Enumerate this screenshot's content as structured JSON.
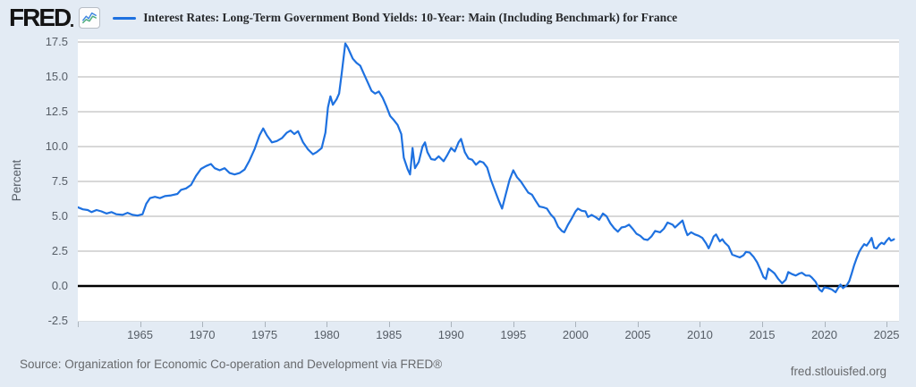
{
  "header": {
    "logo_text": "FRED",
    "legend_label": "Interest Rates: Long-Term Government Bond Yields: 10-Year: Main (Including Benchmark) for France"
  },
  "footer": {
    "source_text": "Source: Organization for Economic Co-operation and Development via FRED®",
    "site_text": "fred.stlouisfed.org"
  },
  "colors": {
    "background": "#e3ebf4",
    "plot_background": "#ffffff",
    "line": "#1e71e0",
    "gridline": "#cccccc",
    "zero_line": "#000000",
    "plot_bottom_border": "#d9dee3",
    "axis_text": "#565d66",
    "legend_text": "#26282b",
    "icon_blue": "#3d85e0",
    "icon_green": "#4cab7d"
  },
  "chart_data": {
    "type": "line",
    "title": "Interest Rates: Long-Term Government Bond Yields: 10-Year: Main (Including Benchmark) for France",
    "xlabel": "",
    "ylabel": "Percent",
    "legend_position": "top",
    "grid": "horizontal",
    "zero_line": true,
    "xlim": [
      1960,
      2026
    ],
    "ylim": [
      -2.5,
      17.5
    ],
    "yticks": [
      17.5,
      15.0,
      12.5,
      10.0,
      7.5,
      5.0,
      2.5,
      0.0,
      -2.5
    ],
    "ytick_labels": [
      "17.5",
      "15.0",
      "12.5",
      "10.0",
      "7.5",
      "5.0",
      "2.5",
      "0.0",
      "-2.5"
    ],
    "xticks": [
      1965,
      1970,
      1975,
      1980,
      1985,
      1990,
      1995,
      2000,
      2005,
      2010,
      2015,
      2020,
      2025
    ],
    "xtick_labels": [
      "1965",
      "1970",
      "1975",
      "1980",
      "1985",
      "1990",
      "1995",
      "2000",
      "2005",
      "2010",
      "2015",
      "2020",
      "2025"
    ],
    "series": [
      {
        "name": "Interest Rates: Long-Term Government Bond Yields: 10-Year: Main (Including Benchmark) for France",
        "units": "Percent",
        "points": [
          [
            1960.0,
            5.65
          ],
          [
            1960.4,
            5.5
          ],
          [
            1960.8,
            5.45
          ],
          [
            1961.1,
            5.3
          ],
          [
            1961.5,
            5.45
          ],
          [
            1961.9,
            5.35
          ],
          [
            1962.3,
            5.2
          ],
          [
            1962.7,
            5.3
          ],
          [
            1963.1,
            5.15
          ],
          [
            1963.6,
            5.1
          ],
          [
            1964.0,
            5.25
          ],
          [
            1964.4,
            5.1
          ],
          [
            1964.8,
            5.05
          ],
          [
            1965.2,
            5.15
          ],
          [
            1965.5,
            5.9
          ],
          [
            1965.8,
            6.3
          ],
          [
            1966.2,
            6.4
          ],
          [
            1966.6,
            6.3
          ],
          [
            1967.0,
            6.45
          ],
          [
            1967.5,
            6.5
          ],
          [
            1968.0,
            6.6
          ],
          [
            1968.3,
            6.9
          ],
          [
            1968.7,
            7.0
          ],
          [
            1969.1,
            7.25
          ],
          [
            1969.5,
            7.9
          ],
          [
            1969.9,
            8.4
          ],
          [
            1970.3,
            8.6
          ],
          [
            1970.7,
            8.75
          ],
          [
            1971.0,
            8.45
          ],
          [
            1971.4,
            8.3
          ],
          [
            1971.8,
            8.45
          ],
          [
            1972.2,
            8.1
          ],
          [
            1972.6,
            8.0
          ],
          [
            1973.0,
            8.1
          ],
          [
            1973.4,
            8.35
          ],
          [
            1973.8,
            9.0
          ],
          [
            1974.2,
            9.8
          ],
          [
            1974.6,
            10.8
          ],
          [
            1974.9,
            11.3
          ],
          [
            1975.2,
            10.8
          ],
          [
            1975.6,
            10.3
          ],
          [
            1976.0,
            10.4
          ],
          [
            1976.4,
            10.6
          ],
          [
            1976.8,
            11.0
          ],
          [
            1977.1,
            11.15
          ],
          [
            1977.4,
            10.9
          ],
          [
            1977.7,
            11.1
          ],
          [
            1978.1,
            10.3
          ],
          [
            1978.5,
            9.8
          ],
          [
            1978.9,
            9.45
          ],
          [
            1979.2,
            9.6
          ],
          [
            1979.6,
            9.9
          ],
          [
            1979.9,
            11.0
          ],
          [
            1980.1,
            12.8
          ],
          [
            1980.3,
            13.6
          ],
          [
            1980.5,
            13.0
          ],
          [
            1980.8,
            13.4
          ],
          [
            1981.0,
            13.8
          ],
          [
            1981.2,
            15.2
          ],
          [
            1981.5,
            17.4
          ],
          [
            1981.7,
            17.1
          ],
          [
            1981.9,
            16.7
          ],
          [
            1982.1,
            16.3
          ],
          [
            1982.4,
            16.0
          ],
          [
            1982.7,
            15.8
          ],
          [
            1983.0,
            15.2
          ],
          [
            1983.3,
            14.6
          ],
          [
            1983.6,
            14.0
          ],
          [
            1983.9,
            13.8
          ],
          [
            1984.2,
            13.95
          ],
          [
            1984.5,
            13.5
          ],
          [
            1984.8,
            12.9
          ],
          [
            1985.1,
            12.2
          ],
          [
            1985.4,
            11.9
          ],
          [
            1985.7,
            11.55
          ],
          [
            1986.0,
            10.9
          ],
          [
            1986.2,
            9.2
          ],
          [
            1986.5,
            8.4
          ],
          [
            1986.7,
            8.0
          ],
          [
            1986.9,
            9.9
          ],
          [
            1987.1,
            8.45
          ],
          [
            1987.4,
            8.9
          ],
          [
            1987.7,
            10.0
          ],
          [
            1987.9,
            10.3
          ],
          [
            1988.1,
            9.6
          ],
          [
            1988.4,
            9.1
          ],
          [
            1988.7,
            9.05
          ],
          [
            1989.0,
            9.3
          ],
          [
            1989.4,
            8.95
          ],
          [
            1989.7,
            9.4
          ],
          [
            1990.0,
            9.9
          ],
          [
            1990.3,
            9.65
          ],
          [
            1990.6,
            10.3
          ],
          [
            1990.8,
            10.55
          ],
          [
            1991.1,
            9.6
          ],
          [
            1991.4,
            9.15
          ],
          [
            1991.7,
            9.05
          ],
          [
            1992.0,
            8.7
          ],
          [
            1992.3,
            8.95
          ],
          [
            1992.6,
            8.85
          ],
          [
            1992.9,
            8.5
          ],
          [
            1993.2,
            7.6
          ],
          [
            1993.5,
            6.9
          ],
          [
            1993.8,
            6.2
          ],
          [
            1994.1,
            5.55
          ],
          [
            1994.4,
            6.6
          ],
          [
            1994.7,
            7.6
          ],
          [
            1995.0,
            8.3
          ],
          [
            1995.3,
            7.8
          ],
          [
            1995.6,
            7.5
          ],
          [
            1995.9,
            7.1
          ],
          [
            1996.2,
            6.7
          ],
          [
            1996.5,
            6.55
          ],
          [
            1996.8,
            6.1
          ],
          [
            1997.1,
            5.7
          ],
          [
            1997.4,
            5.65
          ],
          [
            1997.7,
            5.55
          ],
          [
            1998.0,
            5.15
          ],
          [
            1998.3,
            4.85
          ],
          [
            1998.6,
            4.25
          ],
          [
            1998.9,
            3.95
          ],
          [
            1999.1,
            3.85
          ],
          [
            1999.4,
            4.4
          ],
          [
            1999.7,
            4.85
          ],
          [
            2000.0,
            5.35
          ],
          [
            2000.2,
            5.55
          ],
          [
            2000.5,
            5.4
          ],
          [
            2000.8,
            5.35
          ],
          [
            2001.0,
            4.95
          ],
          [
            2001.3,
            5.1
          ],
          [
            2001.6,
            4.95
          ],
          [
            2001.9,
            4.75
          ],
          [
            2002.2,
            5.2
          ],
          [
            2002.5,
            5.0
          ],
          [
            2002.8,
            4.5
          ],
          [
            2003.1,
            4.15
          ],
          [
            2003.4,
            3.9
          ],
          [
            2003.7,
            4.2
          ],
          [
            2004.0,
            4.25
          ],
          [
            2004.3,
            4.4
          ],
          [
            2004.6,
            4.1
          ],
          [
            2004.9,
            3.75
          ],
          [
            2005.2,
            3.6
          ],
          [
            2005.5,
            3.35
          ],
          [
            2005.8,
            3.3
          ],
          [
            2006.1,
            3.55
          ],
          [
            2006.4,
            3.95
          ],
          [
            2006.8,
            3.85
          ],
          [
            2007.1,
            4.1
          ],
          [
            2007.4,
            4.55
          ],
          [
            2007.8,
            4.4
          ],
          [
            2008.0,
            4.2
          ],
          [
            2008.3,
            4.45
          ],
          [
            2008.6,
            4.7
          ],
          [
            2008.8,
            4.1
          ],
          [
            2009.0,
            3.65
          ],
          [
            2009.3,
            3.85
          ],
          [
            2009.6,
            3.7
          ],
          [
            2009.9,
            3.6
          ],
          [
            2010.2,
            3.45
          ],
          [
            2010.5,
            3.05
          ],
          [
            2010.7,
            2.7
          ],
          [
            2010.9,
            3.1
          ],
          [
            2011.1,
            3.55
          ],
          [
            2011.3,
            3.7
          ],
          [
            2011.6,
            3.2
          ],
          [
            2011.8,
            3.35
          ],
          [
            2012.0,
            3.1
          ],
          [
            2012.3,
            2.85
          ],
          [
            2012.6,
            2.25
          ],
          [
            2012.9,
            2.15
          ],
          [
            2013.2,
            2.05
          ],
          [
            2013.5,
            2.2
          ],
          [
            2013.7,
            2.45
          ],
          [
            2014.0,
            2.4
          ],
          [
            2014.3,
            2.1
          ],
          [
            2014.6,
            1.7
          ],
          [
            2014.9,
            1.1
          ],
          [
            2015.1,
            0.65
          ],
          [
            2015.3,
            0.5
          ],
          [
            2015.5,
            1.25
          ],
          [
            2015.8,
            1.05
          ],
          [
            2016.0,
            0.9
          ],
          [
            2016.3,
            0.5
          ],
          [
            2016.6,
            0.2
          ],
          [
            2016.9,
            0.45
          ],
          [
            2017.1,
            1.0
          ],
          [
            2017.4,
            0.85
          ],
          [
            2017.7,
            0.75
          ],
          [
            2018.0,
            0.9
          ],
          [
            2018.2,
            0.95
          ],
          [
            2018.5,
            0.75
          ],
          [
            2018.8,
            0.75
          ],
          [
            2019.0,
            0.6
          ],
          [
            2019.3,
            0.3
          ],
          [
            2019.6,
            -0.25
          ],
          [
            2019.8,
            -0.4
          ],
          [
            2020.0,
            -0.1
          ],
          [
            2020.3,
            -0.15
          ],
          [
            2020.6,
            -0.25
          ],
          [
            2020.9,
            -0.45
          ],
          [
            2021.1,
            -0.15
          ],
          [
            2021.3,
            0.1
          ],
          [
            2021.5,
            -0.15
          ],
          [
            2021.8,
            0.05
          ],
          [
            2022.0,
            0.35
          ],
          [
            2022.2,
            0.9
          ],
          [
            2022.4,
            1.5
          ],
          [
            2022.6,
            2.0
          ],
          [
            2022.8,
            2.45
          ],
          [
            2023.0,
            2.75
          ],
          [
            2023.2,
            3.0
          ],
          [
            2023.4,
            2.9
          ],
          [
            2023.6,
            3.15
          ],
          [
            2023.8,
            3.45
          ],
          [
            2024.0,
            2.75
          ],
          [
            2024.2,
            2.7
          ],
          [
            2024.4,
            2.95
          ],
          [
            2024.6,
            3.1
          ],
          [
            2024.8,
            3.0
          ],
          [
            2025.0,
            3.25
          ],
          [
            2025.2,
            3.45
          ],
          [
            2025.35,
            3.25
          ],
          [
            2025.5,
            3.3
          ],
          [
            2025.6,
            3.35
          ]
        ]
      }
    ]
  }
}
